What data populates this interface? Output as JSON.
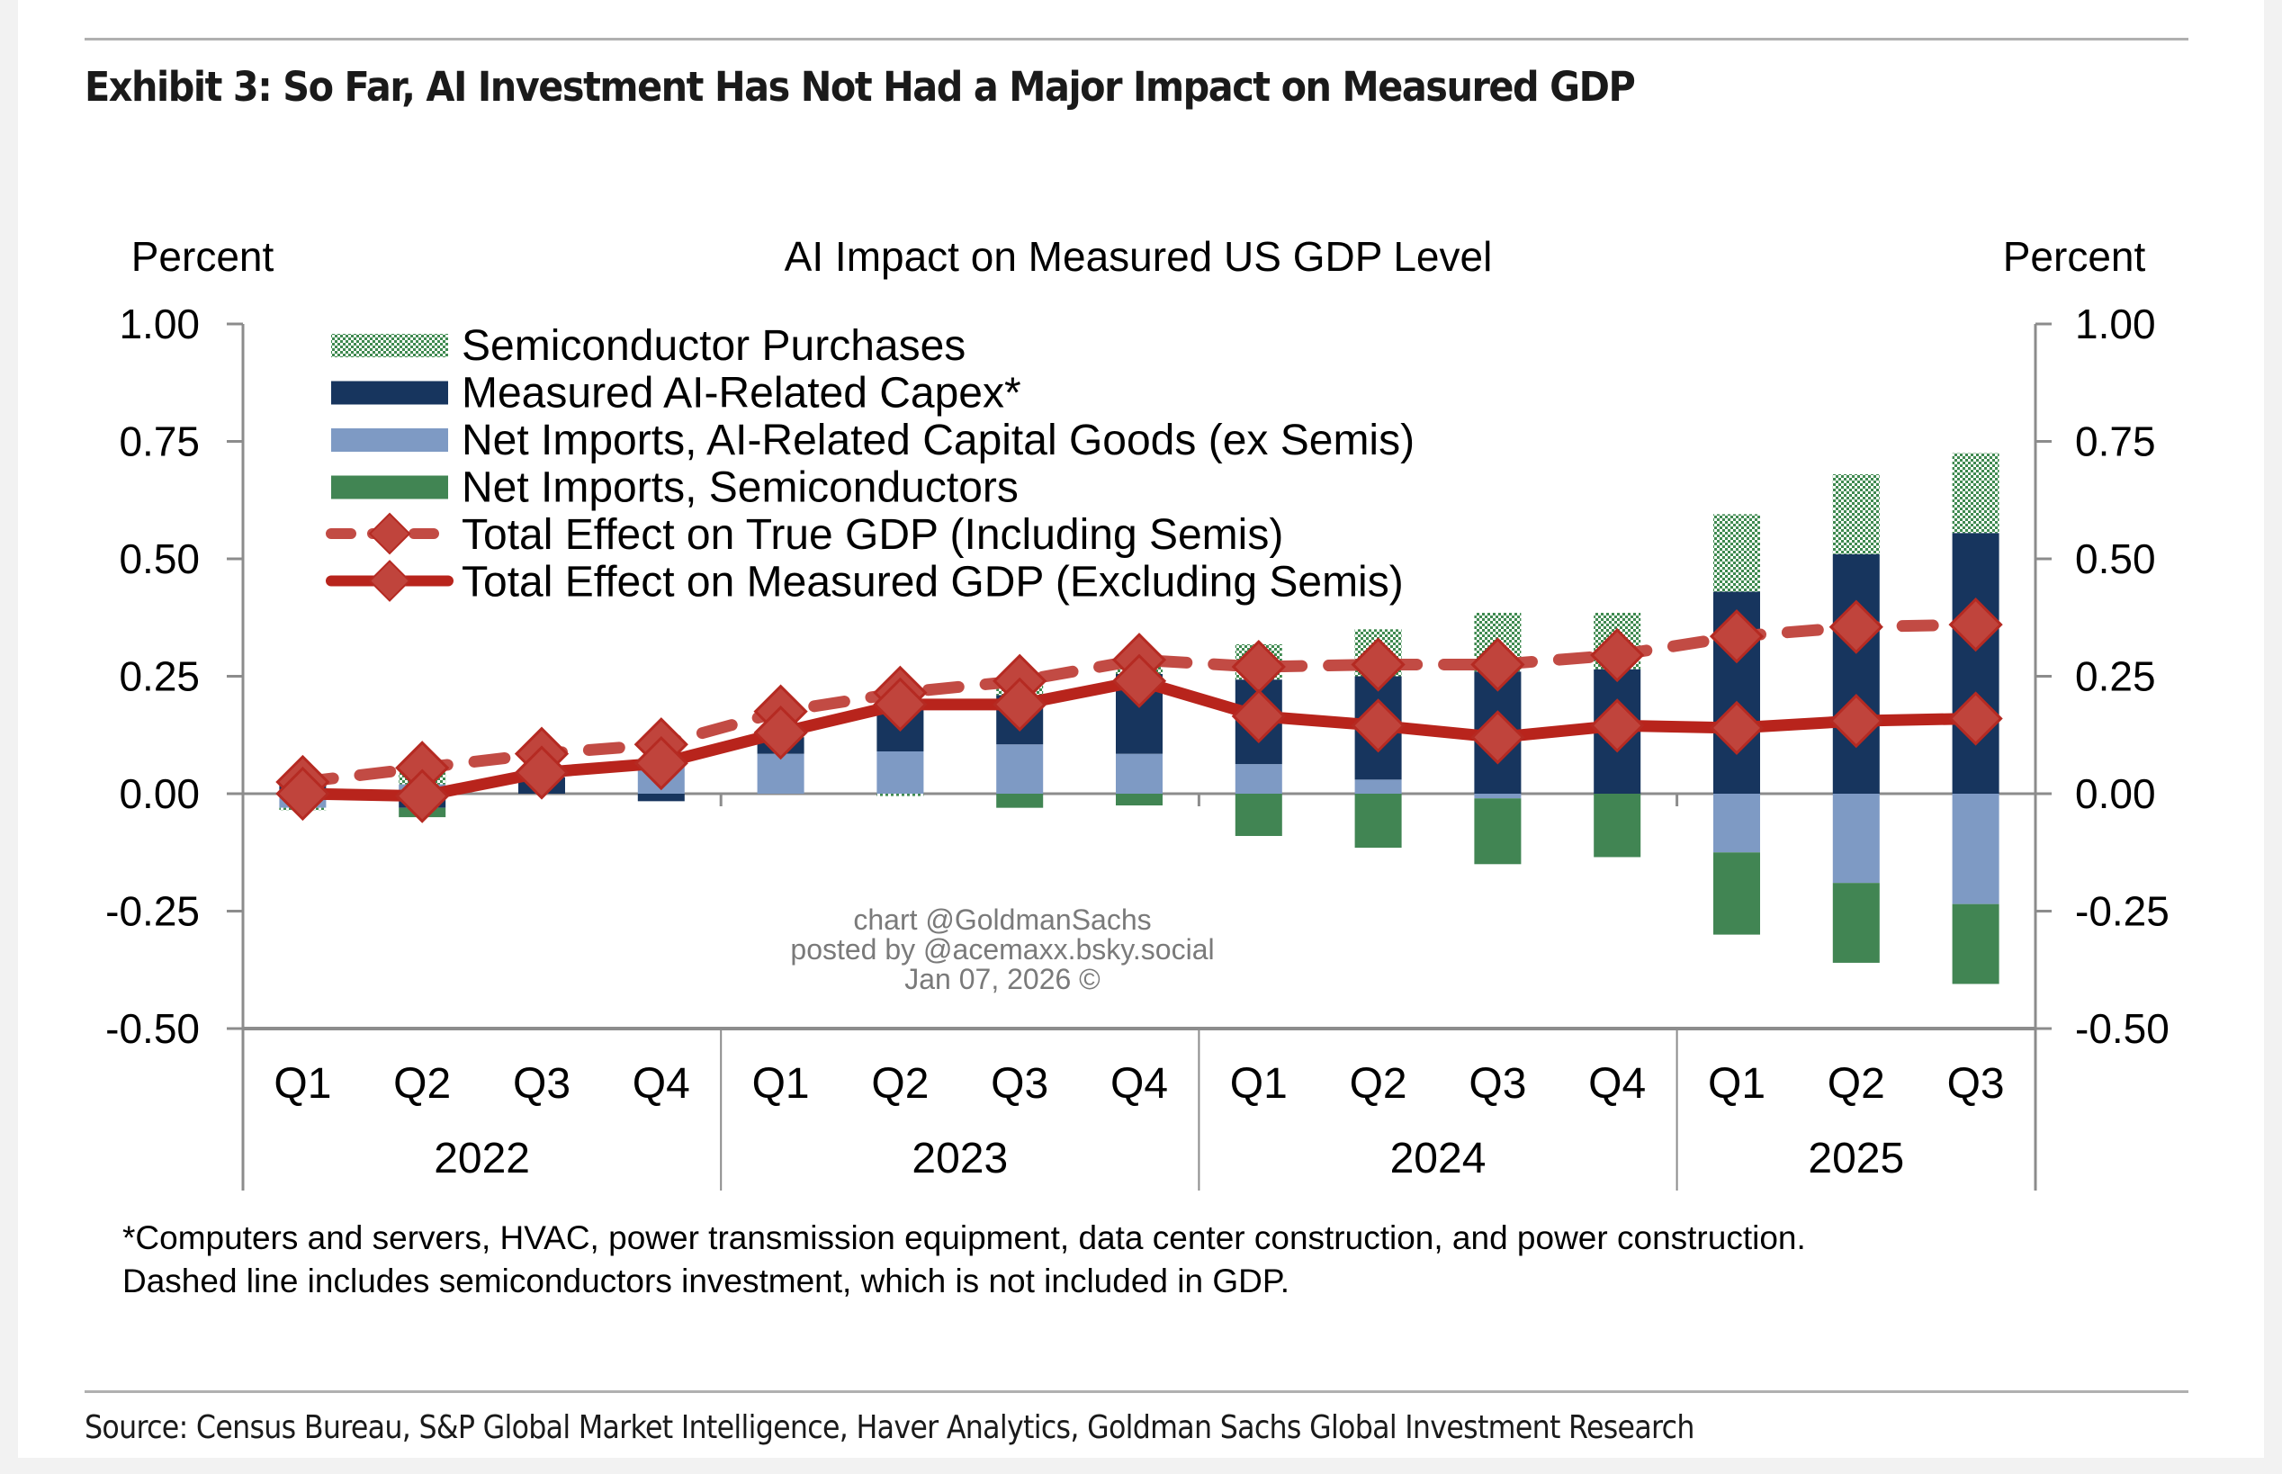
{
  "exhibit_title": "Exhibit 3: So Far, AI Investment Has Not Had a Major Impact on Measured GDP",
  "source": "Source: Census Bureau, S&P Global Market Intelligence, Haver Analytics, Goldman Sachs Global Investment Research",
  "footnotes": [
    "*Computers and servers, HVAC, power transmission equipment, data center construction, and power construction.",
    "Dashed line includes semiconductors investment, which is not included in GDP."
  ],
  "watermark": [
    "chart @GoldmanSachs",
    "posted by @acemaxx.bsky.social",
    "Jan 07, 2026 ©"
  ],
  "chart_data": {
    "type": "bar",
    "subtype": "stacked bar with line overlay",
    "title": "AI Impact on Measured US GDP Level",
    "ylabel_left": "Percent",
    "ylabel_right": "Percent",
    "ylim": [
      -0.5,
      1.0
    ],
    "yticks": [
      "1.00",
      "0.75",
      "0.50",
      "0.25",
      "0.00",
      "-0.25",
      "-0.50"
    ],
    "ytick_values": [
      1.0,
      0.75,
      0.5,
      0.25,
      0.0,
      -0.25,
      -0.5
    ],
    "grid": false,
    "legend_position": "top-left",
    "categories": [
      "Q1",
      "Q2",
      "Q3",
      "Q4",
      "Q1",
      "Q2",
      "Q3",
      "Q4",
      "Q1",
      "Q2",
      "Q3",
      "Q4",
      "Q1",
      "Q2",
      "Q3"
    ],
    "year_groups": [
      {
        "label": "2022",
        "count": 4
      },
      {
        "label": "2023",
        "count": 4
      },
      {
        "label": "2024",
        "count": 4
      },
      {
        "label": "2025",
        "count": 3
      }
    ],
    "series": [
      {
        "name": "Semiconductor Purchases",
        "kind": "bar",
        "color": "#3f8a50",
        "pattern": "checker",
        "values": [
          -0.005,
          0.025,
          0.0,
          0.008,
          0.005,
          -0.005,
          0.02,
          0.02,
          0.075,
          0.1,
          0.125,
          0.12,
          0.165,
          0.17,
          0.17
        ]
      },
      {
        "name": "Measured AI-Related Capex*",
        "kind": "bar",
        "color": "#17355e",
        "values": [
          0.02,
          -0.03,
          0.035,
          -0.016,
          0.035,
          0.09,
          0.105,
          0.17,
          0.18,
          0.22,
          0.26,
          0.265,
          0.43,
          0.51,
          0.555
        ]
      },
      {
        "name": "Net Imports, AI-Related Capital Goods (ex Semis)",
        "kind": "bar",
        "color": "#7e9ac4",
        "values": [
          -0.03,
          0.02,
          0.0,
          0.067,
          0.085,
          0.09,
          0.105,
          0.085,
          0.063,
          0.03,
          -0.01,
          0.0,
          -0.125,
          -0.19,
          -0.235
        ]
      },
      {
        "name": "Net Imports, Semiconductors",
        "kind": "bar",
        "color": "#418553",
        "values": [
          0.0,
          -0.02,
          0.0,
          0.0,
          0.0,
          0.002,
          -0.03,
          -0.025,
          -0.09,
          -0.115,
          -0.14,
          -0.135,
          -0.175,
          -0.17,
          -0.17
        ]
      },
      {
        "name": "Total Effect on True GDP (Including Semis)",
        "kind": "line",
        "style": "dashed",
        "marker": "diamond",
        "color": "#c0403a",
        "values": [
          0.025,
          0.055,
          0.085,
          0.105,
          0.175,
          0.215,
          0.24,
          0.285,
          0.27,
          0.275,
          0.275,
          0.295,
          0.335,
          0.355,
          0.36
        ]
      },
      {
        "name": "Total Effect on Measured GDP (Excluding Semis)",
        "kind": "line",
        "style": "solid",
        "marker": "diamond",
        "color": "#b8241c",
        "values": [
          0.0,
          -0.005,
          0.045,
          0.065,
          0.13,
          0.19,
          0.19,
          0.24,
          0.165,
          0.145,
          0.12,
          0.145,
          0.14,
          0.155,
          0.16
        ]
      }
    ]
  }
}
